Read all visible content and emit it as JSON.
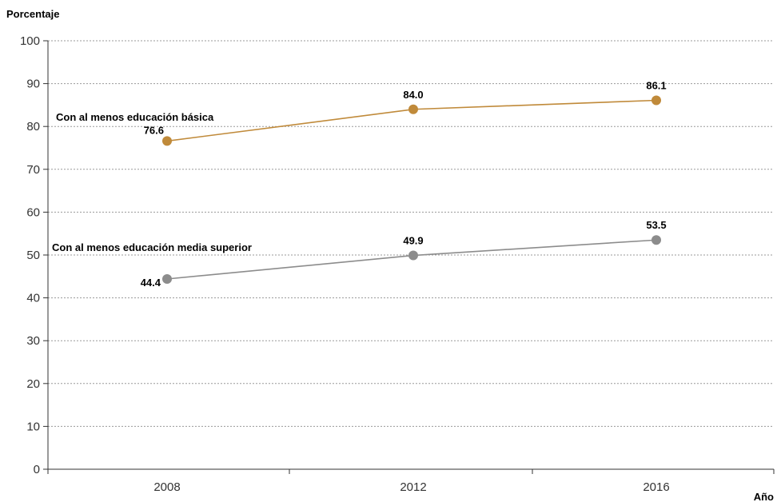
{
  "chart_data": {
    "type": "line",
    "ylabel": "Porcentaje",
    "xlabel": "Año",
    "ylim": [
      0,
      100
    ],
    "yticks": [
      0,
      10,
      20,
      30,
      40,
      50,
      60,
      70,
      80,
      90,
      100
    ],
    "categories": [
      "2008",
      "2012",
      "2016"
    ],
    "grid": true,
    "series": [
      {
        "name": "Con al menos educación básica",
        "values": [
          76.6,
          84.0,
          86.1
        ],
        "labels": [
          "76.6",
          "84.0",
          "86.1"
        ],
        "color": "#c08a3a"
      },
      {
        "name": "Con al menos educación media superior",
        "values": [
          44.4,
          49.9,
          53.5
        ],
        "labels": [
          "44.4",
          "49.9",
          "53.5"
        ],
        "color": "#8c8c8c"
      }
    ]
  }
}
